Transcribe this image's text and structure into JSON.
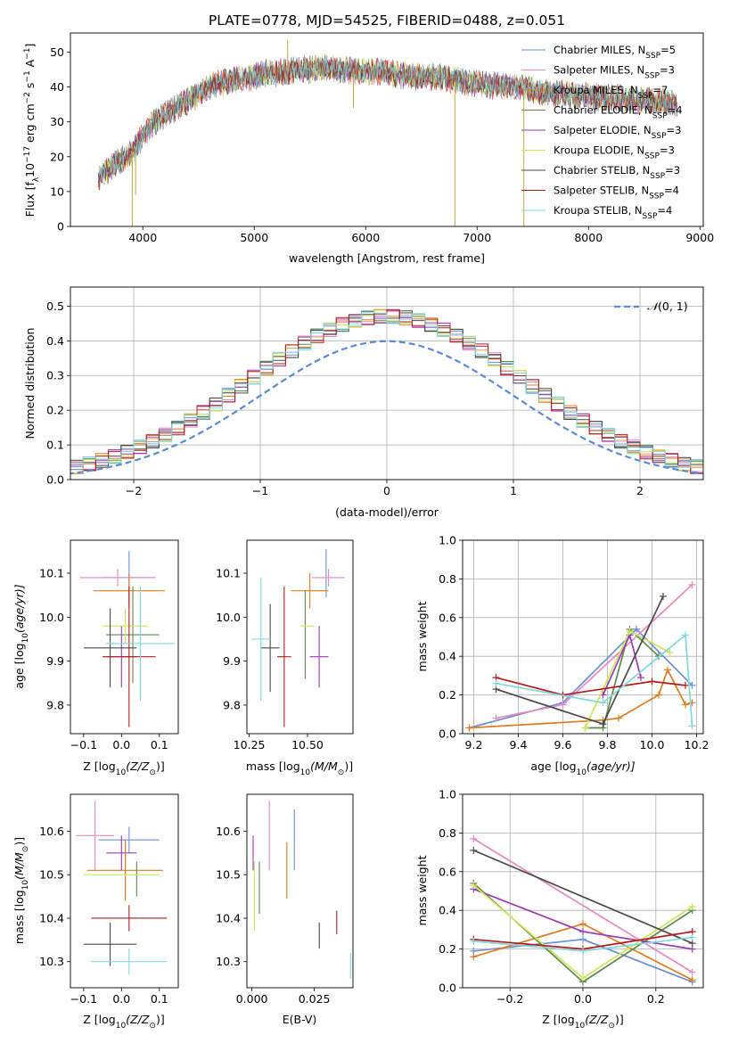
{
  "figure": {
    "title": "PLATE=0778, MJD=54525, FIBERID=0488, z=0.051"
  },
  "colors": {
    "Chabrier MILES": "#6a8fd8",
    "Salpeter MILES": "#e889c0",
    "Kroupa MILES": "#e07b20",
    "Chabrier ELODIE": "#5e8a4e",
    "Salpeter ELODIE": "#9b3bb5",
    "Kroupa ELODIE": "#cde65a",
    "Chabrier STELIB": "#4a4a4a",
    "Salpeter STELIB": "#b51b1b",
    "Kroupa STELIB": "#7fd8dc"
  },
  "chart_data": [
    {
      "id": "spectrum",
      "type": "line",
      "xlabel": "wavelength [Angstrom, rest frame]",
      "ylabel_text": "Flux [f",
      "ylabel_sub": "λ",
      "ylabel_text2": "10",
      "ylabel_sup": "−17",
      "ylabel_text3": " erg cm",
      "ylabel_sup2": "−2",
      "ylabel_text4": " s",
      "ylabel_sup3": "−1",
      "ylabel_text5": " A",
      "ylabel_sup4": "−1",
      "ylabel_text6": "]",
      "xlim": [
        3350,
        9030
      ],
      "ylim": [
        0,
        55.5
      ],
      "xticks": [
        4000,
        5000,
        6000,
        7000,
        8000,
        9000
      ],
      "yticks": [
        0,
        10,
        20,
        30,
        40,
        50
      ],
      "continuum": {
        "x": [
          3600,
          3750,
          3900,
          4000,
          4100,
          4200,
          4300,
          4400,
          4500,
          4600,
          4700,
          4800,
          4900,
          5000,
          5100,
          5200,
          5300,
          5400,
          5500,
          5600,
          5700,
          5800,
          5900,
          6000,
          6100,
          6200,
          6300,
          6400,
          6500,
          6600,
          6700,
          6800,
          6900,
          7000,
          7100,
          7200,
          7300,
          7400,
          7500,
          7600,
          7700,
          7800,
          7900,
          8000,
          8100,
          8200,
          8300,
          8400,
          8500,
          8600,
          8700,
          8800
        ],
        "y": [
          14,
          18,
          21,
          26,
          30,
          32,
          34,
          36,
          38,
          40,
          41,
          42,
          42.5,
          43,
          44,
          44,
          44.5,
          45,
          45,
          45.5,
          45.5,
          45,
          44.5,
          44.5,
          44.5,
          44,
          43.5,
          43.5,
          43,
          43,
          42.5,
          42,
          41.5,
          41,
          40.5,
          40.5,
          40,
          40,
          39,
          38,
          38,
          38,
          37.5,
          37.5,
          37,
          37,
          36.5,
          36.5,
          36,
          36,
          35.5,
          35
        ]
      },
      "spikes": [
        {
          "x": 3905,
          "y": 0
        },
        {
          "x": 6800,
          "y": 0
        },
        {
          "x": 7420,
          "y": 0
        },
        {
          "x": 5300,
          "y": 53.5
        },
        {
          "x": 3935,
          "y": 9
        },
        {
          "x": 5890,
          "y": 34
        }
      ],
      "legend_location": "upper-right",
      "legend": [
        {
          "name": "Chabrier MILES",
          "n": "5"
        },
        {
          "name": "Salpeter MILES",
          "n": "3"
        },
        {
          "name": "Kroupa MILES",
          "n": "7"
        },
        {
          "name": "Chabrier ELODIE",
          "n": "4"
        },
        {
          "name": "Salpeter ELODIE",
          "n": "3"
        },
        {
          "name": "Kroupa ELODIE",
          "n": "3"
        },
        {
          "name": "Chabrier STELIB",
          "n": "3"
        },
        {
          "name": "Salpeter STELIB",
          "n": "4"
        },
        {
          "name": "Kroupa STELIB",
          "n": "4"
        }
      ],
      "legend_prefix": "N",
      "legend_sub": "SSP"
    },
    {
      "id": "residuals",
      "type": "step",
      "xlabel": "(data-model)/error",
      "ylabel": "Normed distribution",
      "xlim": [
        -2.5,
        2.5
      ],
      "ylim": [
        0,
        0.555
      ],
      "xticks": [
        -2,
        -1,
        0,
        1,
        2
      ],
      "yticks": [
        0.0,
        0.1,
        0.2,
        0.3,
        0.4,
        0.5
      ],
      "grid": true,
      "bin_width": 0.1,
      "bin_start": -2.5,
      "gaussian_label": "(0, 1)",
      "gaussian_script": "𝒩",
      "legend_location": "upper-right"
    },
    {
      "id": "age-vs-Z",
      "type": "errorbar",
      "xlabel_text": "Z [log",
      "xlabel_sub": "10",
      "xlabel_text2": "(Z/Z",
      "xlabel_sub2": "⊙",
      "xlabel_text3": ")]",
      "ylabel_text": "age  [log",
      "ylabel_sub": "10",
      "ylabel_text2": "(age/yr)]",
      "xlim": [
        -0.135,
        0.15
      ],
      "ylim": [
        9.735,
        10.175
      ],
      "xticks": [
        -0.1,
        0.0,
        0.1
      ],
      "yticks": [
        9.8,
        9.9,
        10.0,
        10.1
      ],
      "points": [
        {
          "model": "Chabrier MILES",
          "x": 0.02,
          "y": 10.09,
          "xerr": 0.07,
          "yerr": 0.06
        },
        {
          "model": "Salpeter MILES",
          "x": -0.01,
          "y": 10.09,
          "xerr": 0.1,
          "yerr": 0.02
        },
        {
          "model": "Kroupa MILES",
          "x": 0.02,
          "y": 10.06,
          "xerr": 0.095,
          "yerr": 0.04
        },
        {
          "model": "Chabrier ELODIE",
          "x": 0.03,
          "y": 9.96,
          "xerr": 0.07,
          "yerr": 0.11
        },
        {
          "model": "Salpeter ELODIE",
          "x": 0.0,
          "y": 9.91,
          "xerr": 0.04,
          "yerr": 0.07
        },
        {
          "model": "Kroupa ELODIE",
          "x": 0.01,
          "y": 9.98,
          "xerr": 0.06,
          "yerr": 0.04
        },
        {
          "model": "Chabrier STELIB",
          "x": -0.03,
          "y": 9.93,
          "xerr": 0.07,
          "yerr": 0.09
        },
        {
          "model": "Salpeter STELIB",
          "x": 0.02,
          "y": 9.91,
          "xerr": 0.07,
          "yerr": 0.16
        },
        {
          "model": "Kroupa STELIB",
          "x": 0.05,
          "y": 9.94,
          "xerr": 0.09,
          "yerr": 0.13
        }
      ]
    },
    {
      "id": "age-vs-mass",
      "type": "errorbar",
      "xlabel_text": "mass [log",
      "xlabel_sub": "10",
      "xlabel_text2": "(M/M",
      "xlabel_sub2": "⊙",
      "xlabel_text3": ")]",
      "xlim": [
        10.24,
        10.695
      ],
      "ylim": [
        9.735,
        10.175
      ],
      "xticks": [
        10.25,
        10.5
      ],
      "xtick_labels": [
        "10.25",
        "10.50"
      ],
      "yticks": [
        9.8,
        9.9,
        10.0,
        10.1
      ],
      "points": [
        {
          "model": "Chabrier MILES",
          "x": 10.58,
          "y": 10.1,
          "xerr": 0.0,
          "yerr": 0.055
        },
        {
          "model": "Salpeter MILES",
          "x": 10.59,
          "y": 10.09,
          "xerr": 0.07,
          "yerr": 0.02
        },
        {
          "model": "Kroupa MILES",
          "x": 10.51,
          "y": 10.06,
          "xerr": 0.08,
          "yerr": 0.04
        },
        {
          "model": "Chabrier ELODIE",
          "x": 10.49,
          "y": 9.96,
          "xerr": 0.0,
          "yerr": 0.1
        },
        {
          "model": "Salpeter ELODIE",
          "x": 10.55,
          "y": 9.91,
          "xerr": 0.04,
          "yerr": 0.07
        },
        {
          "model": "Kroupa ELODIE",
          "x": 10.5,
          "y": 9.98,
          "xerr": 0.03,
          "yerr": 0.0
        },
        {
          "model": "Chabrier STELIB",
          "x": 10.34,
          "y": 9.93,
          "xerr": 0.04,
          "yerr": 0.1
        },
        {
          "model": "Salpeter STELIB",
          "x": 10.4,
          "y": 9.91,
          "xerr": 0.03,
          "yerr": 0.16
        },
        {
          "model": "Kroupa STELIB",
          "x": 10.3,
          "y": 9.95,
          "xerr": 0.04,
          "yerr": 0.14
        }
      ]
    },
    {
      "id": "weight-vs-age",
      "type": "line",
      "xlabel_text": "age  [log",
      "xlabel_sub": "10",
      "xlabel_text2": "(age/yr)]",
      "ylabel": "mass weight",
      "xlim": [
        9.15,
        10.23
      ],
      "ylim": [
        0,
        1.0
      ],
      "xticks": [
        9.2,
        9.4,
        9.6,
        9.8,
        10.0,
        10.2
      ],
      "yticks": [
        0.0,
        0.2,
        0.4,
        0.6,
        0.8,
        1.0
      ],
      "grid": true,
      "series": [
        {
          "model": "Chabrier MILES",
          "x": [
            9.18,
            9.6,
            9.93,
            10.18
          ],
          "y": [
            0.03,
            0.16,
            0.54,
            0.25
          ]
        },
        {
          "model": "Salpeter MILES",
          "x": [
            9.3,
            9.6,
            10.18
          ],
          "y": [
            0.08,
            0.15,
            0.77
          ]
        },
        {
          "model": "Kroupa MILES",
          "x": [
            9.18,
            9.78,
            9.85,
            10.03,
            10.07,
            10.15,
            10.18
          ],
          "y": [
            0.03,
            0.07,
            0.08,
            0.2,
            0.33,
            0.15,
            0.16
          ]
        },
        {
          "model": "Chabrier ELODIE",
          "x": [
            9.7,
            9.78,
            9.9,
            10.03
          ],
          "y": [
            0.03,
            0.03,
            0.54,
            0.4
          ]
        },
        {
          "model": "Salpeter ELODIE",
          "x": [
            9.78,
            9.9,
            9.95
          ],
          "y": [
            0.2,
            0.51,
            0.29
          ]
        },
        {
          "model": "Kroupa ELODIE",
          "x": [
            9.7,
            9.9,
            10.08
          ],
          "y": [
            0.03,
            0.53,
            0.42
          ]
        },
        {
          "model": "Chabrier STELIB",
          "x": [
            9.3,
            9.78,
            10.05
          ],
          "y": [
            0.23,
            0.05,
            0.71
          ]
        },
        {
          "model": "Salpeter STELIB",
          "x": [
            9.3,
            9.6,
            10.0,
            10.15
          ],
          "y": [
            0.29,
            0.2,
            0.27,
            0.25
          ]
        },
        {
          "model": "Kroupa STELIB",
          "x": [
            9.3,
            9.78,
            10.15,
            10.18
          ],
          "y": [
            0.26,
            0.16,
            0.51,
            0.04
          ]
        }
      ]
    },
    {
      "id": "mass-vs-Z",
      "type": "errorbar",
      "xlabel_text": "Z [log",
      "xlabel_sub": "10",
      "xlabel_text2": "(Z/Z",
      "xlabel_sub2": "⊙",
      "xlabel_text3": ")]",
      "ylabel_text": "mass [log",
      "ylabel_sub": "10",
      "ylabel_text2": "(M/M",
      "ylabel_sub2": "⊙",
      "ylabel_text3": ")]",
      "xlim": [
        -0.135,
        0.15
      ],
      "ylim": [
        10.24,
        10.685
      ],
      "xticks": [
        -0.1,
        0.0,
        0.1
      ],
      "yticks": [
        10.3,
        10.4,
        10.5,
        10.6
      ],
      "points": [
        {
          "model": "Chabrier MILES",
          "x": 0.02,
          "y": 10.58,
          "xerr": 0.08,
          "yerr": 0.03
        },
        {
          "model": "Salpeter MILES",
          "x": -0.07,
          "y": 10.59,
          "xerr": 0.05,
          "yerr": 0.08
        },
        {
          "model": "Kroupa MILES",
          "x": 0.01,
          "y": 10.51,
          "xerr": 0.1,
          "yerr": 0.07
        },
        {
          "model": "Chabrier ELODIE",
          "x": 0.04,
          "y": 10.49,
          "xerr": 0.0,
          "yerr": 0.04
        },
        {
          "model": "Salpeter ELODIE",
          "x": 0.0,
          "y": 10.55,
          "xerr": 0.04,
          "yerr": 0.04
        },
        {
          "model": "Kroupa ELODIE",
          "x": 0.0,
          "y": 10.5,
          "xerr": 0.1,
          "yerr": 0.0
        },
        {
          "model": "Chabrier STELIB",
          "x": -0.03,
          "y": 10.34,
          "xerr": 0.07,
          "yerr": 0.05
        },
        {
          "model": "Salpeter STELIB",
          "x": 0.02,
          "y": 10.4,
          "xerr": 0.1,
          "yerr": 0.03
        },
        {
          "model": "Kroupa STELIB",
          "x": 0.02,
          "y": 10.3,
          "xerr": 0.1,
          "yerr": 0.03
        }
      ]
    },
    {
      "id": "mass-vs-EBV",
      "type": "errorbar",
      "xlabel": "E(B-V)",
      "xlim": [
        -0.002,
        0.0405
      ],
      "ylim": [
        10.24,
        10.685
      ],
      "xticks": [
        0.0,
        0.025
      ],
      "xtick_labels": [
        "0.000",
        "0.025"
      ],
      "yticks": [
        10.3,
        10.4,
        10.5,
        10.6
      ],
      "points": [
        {
          "model": "Chabrier MILES",
          "x": 0.017,
          "y": 10.58,
          "xerr": 0.0,
          "yerr": 0.07
        },
        {
          "model": "Salpeter MILES",
          "x": 0.007,
          "y": 10.59,
          "xerr": 0.0,
          "yerr": 0.08
        },
        {
          "model": "Kroupa MILES",
          "x": 0.014,
          "y": 10.51,
          "xerr": 0.0,
          "yerr": 0.065
        },
        {
          "model": "Chabrier ELODIE",
          "x": 0.003,
          "y": 10.47,
          "xerr": 0.0,
          "yerr": 0.06
        },
        {
          "model": "Salpeter ELODIE",
          "x": 0.0005,
          "y": 10.55,
          "xerr": 0.0,
          "yerr": 0.04
        },
        {
          "model": "Kroupa ELODIE",
          "x": 0.001,
          "y": 10.45,
          "xerr": 0.0,
          "yerr": 0.08
        },
        {
          "model": "Chabrier STELIB",
          "x": 0.027,
          "y": 10.36,
          "xerr": 0.0,
          "yerr": 0.03
        },
        {
          "model": "Salpeter STELIB",
          "x": 0.034,
          "y": 10.39,
          "xerr": 0.0,
          "yerr": 0.027
        },
        {
          "model": "Kroupa STELIB",
          "x": 0.0395,
          "y": 10.29,
          "xerr": 0.0,
          "yerr": 0.03
        }
      ]
    },
    {
      "id": "weight-vs-Z",
      "type": "line",
      "xlabel_text": "Z [log",
      "xlabel_sub": "10",
      "xlabel_text2": "(Z/Z",
      "xlabel_sub2": "⊙",
      "xlabel_text3": ")]",
      "ylabel": "mass weight",
      "xlim": [
        -0.33,
        0.33
      ],
      "ylim": [
        0,
        1.0
      ],
      "xticks": [
        -0.2,
        0.0,
        0.2
      ],
      "yticks": [
        0.0,
        0.2,
        0.4,
        0.6,
        0.8,
        1.0
      ],
      "grid": true,
      "series": [
        {
          "model": "Chabrier MILES",
          "x": [
            -0.3,
            0.0,
            0.3
          ],
          "y": [
            0.19,
            0.25,
            0.03
          ]
        },
        {
          "model": "Salpeter MILES",
          "x": [
            -0.3,
            0.3
          ],
          "y": [
            0.77,
            0.08
          ]
        },
        {
          "model": "Kroupa MILES",
          "x": [
            -0.3,
            0.0,
            0.3
          ],
          "y": [
            0.16,
            0.33,
            0.04
          ]
        },
        {
          "model": "Chabrier ELODIE",
          "x": [
            -0.3,
            0.0,
            0.3
          ],
          "y": [
            0.54,
            0.03,
            0.4
          ]
        },
        {
          "model": "Salpeter ELODIE",
          "x": [
            -0.3,
            0.0,
            0.3
          ],
          "y": [
            0.51,
            0.29,
            0.2
          ]
        },
        {
          "model": "Kroupa ELODIE",
          "x": [
            -0.3,
            0.0,
            0.3
          ],
          "y": [
            0.53,
            0.05,
            0.42
          ]
        },
        {
          "model": "Chabrier STELIB",
          "x": [
            -0.3,
            0.3
          ],
          "y": [
            0.71,
            0.23
          ]
        },
        {
          "model": "Salpeter STELIB",
          "x": [
            -0.3,
            0.0,
            0.3
          ],
          "y": [
            0.25,
            0.2,
            0.29
          ]
        },
        {
          "model": "Kroupa STELIB",
          "x": [
            -0.3,
            0.0,
            0.3
          ],
          "y": [
            0.24,
            0.19,
            0.26
          ]
        }
      ]
    }
  ]
}
